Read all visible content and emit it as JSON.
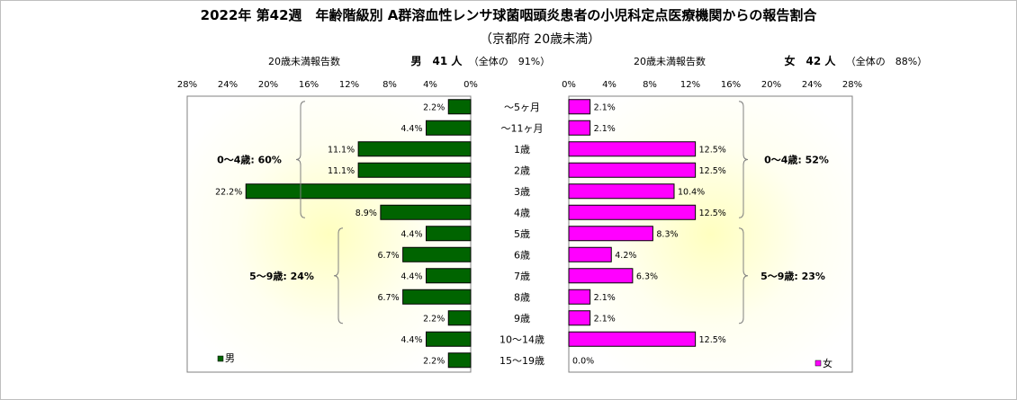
{
  "chart_data": {
    "type": "bar",
    "orientation": "horizontal-pyramid",
    "title": "2022年 第42週　年齢階級別 A群溶血性レンサ球菌咽頭炎患者の小児科定点医療機関からの報告割合",
    "subtitle": "（京都府 20歳未満）",
    "categories": [
      "～5ヶ月",
      "～11ヶ月",
      "1歳",
      "2歳",
      "3歳",
      "4歳",
      "5歳",
      "6歳",
      "7歳",
      "8歳",
      "9歳",
      "10～14歳",
      "15～19歳"
    ],
    "axis_ticks": [
      "0%",
      "4%",
      "8%",
      "12%",
      "16%",
      "20%",
      "24%",
      "28%"
    ],
    "xlim": [
      0,
      28
    ],
    "series": [
      {
        "side": "left",
        "name": "男",
        "color": "#006400",
        "header_label": "20歳未満報告数",
        "header_count": "男　41 人",
        "header_share": "（全体の　91%）",
        "values": [
          2.2,
          4.4,
          11.1,
          11.1,
          22.2,
          8.9,
          4.4,
          6.7,
          4.4,
          6.7,
          2.2,
          4.4,
          2.2
        ],
        "value_labels": [
          "2.2%",
          "4.4%",
          "11.1%",
          "11.1%",
          "22.2%",
          "8.9%",
          "4.4%",
          "6.7%",
          "4.4%",
          "6.7%",
          "2.2%",
          "4.4%",
          "2.2%"
        ],
        "groups": [
          {
            "label": "0～4歳: 60%",
            "from": 0,
            "to": 5
          },
          {
            "label": "5～9歳: 24%",
            "from": 6,
            "to": 10
          }
        ]
      },
      {
        "side": "right",
        "name": "女",
        "color": "#ff00ff",
        "header_label": "20歳未満報告数",
        "header_count": "女　42 人",
        "header_share": "（全体の　88%）",
        "values": [
          2.1,
          2.1,
          12.5,
          12.5,
          10.4,
          12.5,
          8.3,
          4.2,
          6.3,
          2.1,
          2.1,
          12.5,
          0.0
        ],
        "value_labels": [
          "2.1%",
          "2.1%",
          "12.5%",
          "12.5%",
          "10.4%",
          "12.5%",
          "8.3%",
          "4.2%",
          "6.3%",
          "2.1%",
          "2.1%",
          "12.5%",
          "0.0%"
        ],
        "groups": [
          {
            "label": "0～4歳: 52%",
            "from": 0,
            "to": 5
          },
          {
            "label": "5～9歳: 23%",
            "from": 6,
            "to": 10
          }
        ]
      }
    ],
    "legend": [
      "男",
      "女"
    ],
    "grid": false
  }
}
